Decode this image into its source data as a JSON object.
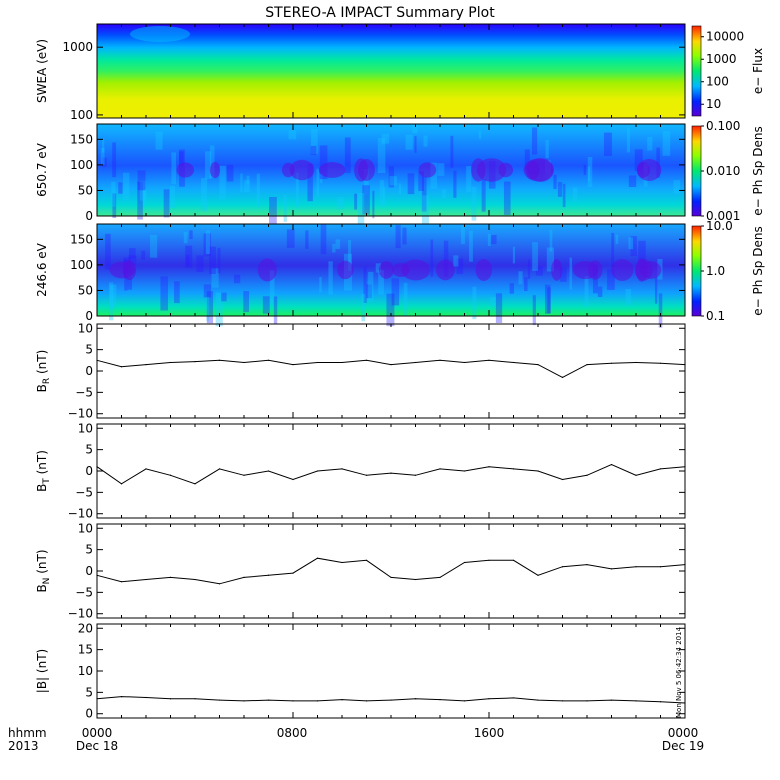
{
  "title": "STEREO-A IMPACT Summary Plot",
  "footer": {
    "left_top": "hhmm",
    "left_bottom": "2013",
    "start_date": "Dec 18",
    "end_date": "Dec 19"
  },
  "x_ticks": [
    "0000",
    "0800",
    "1600",
    "0000"
  ],
  "stamp": "Mon Nov  5 06:42:34 2014",
  "colors": {
    "axis": "#000000",
    "line": "#000000"
  },
  "chart_data": [
    {
      "type": "heatmap",
      "id": "swea",
      "ylabel": "SWEA (eV)",
      "yscale": "log",
      "ylim": [
        90,
        2200
      ],
      "yticks": [
        100,
        1000
      ],
      "ytick_labels": [
        "100",
        "1000"
      ],
      "colorbar": {
        "label": "e− Flux",
        "scale": "log",
        "range": [
          3,
          30000
        ],
        "ticks": [
          10,
          100,
          1000,
          10000
        ],
        "tick_labels": [
          "10",
          "100",
          "1000",
          "10000"
        ]
      }
    },
    {
      "type": "heatmap",
      "id": "pad650",
      "ylabel": "650.7 eV",
      "ylim": [
        0,
        180
      ],
      "yticks": [
        0,
        50,
        100,
        150
      ],
      "ytick_labels": [
        "0",
        "50",
        "100",
        "150"
      ],
      "colorbar": {
        "label": "e− Ph Sp Dens",
        "scale": "log",
        "range": [
          0.001,
          0.1
        ],
        "ticks": [
          0.001,
          0.01,
          0.1
        ],
        "tick_labels": [
          "0.001",
          "0.010",
          "0.100"
        ]
      }
    },
    {
      "type": "heatmap",
      "id": "pad246",
      "ylabel": "246.6 eV",
      "ylim": [
        0,
        180
      ],
      "yticks": [
        0,
        50,
        100,
        150
      ],
      "ytick_labels": [
        "0",
        "50",
        "100",
        "150"
      ],
      "colorbar": {
        "label": "e− Ph Sp Dens",
        "scale": "log",
        "range": [
          0.1,
          10
        ],
        "ticks": [
          0.1,
          1,
          10
        ],
        "tick_labels": [
          "0.1",
          "1.0",
          "10.0"
        ]
      }
    },
    {
      "type": "line",
      "id": "br",
      "ylabel_main": "B",
      "ylabel_sub": "R",
      "ylabel_tail": " (nT)",
      "ylim": [
        -11,
        11
      ],
      "yticks": [
        -10,
        -5,
        0,
        5,
        10
      ],
      "ytick_labels": [
        "−10",
        "−5",
        "0",
        "5",
        "10"
      ],
      "x_hours": [
        0,
        1,
        2,
        3,
        4,
        5,
        6,
        7,
        8,
        9,
        10,
        11,
        12,
        13,
        14,
        15,
        16,
        17,
        18,
        19,
        20,
        21,
        22,
        23,
        24
      ],
      "values": [
        2.5,
        1.0,
        1.5,
        2.0,
        2.2,
        2.5,
        2.0,
        2.5,
        1.5,
        2.0,
        2.0,
        2.5,
        1.5,
        2.0,
        2.5,
        2.0,
        2.5,
        2.0,
        1.5,
        -1.5,
        1.5,
        1.8,
        2.0,
        1.8,
        1.5
      ]
    },
    {
      "type": "line",
      "id": "bt",
      "ylabel_main": "B",
      "ylabel_sub": "T",
      "ylabel_tail": " (nT)",
      "ylim": [
        -11,
        11
      ],
      "yticks": [
        -10,
        -5,
        0,
        5,
        10
      ],
      "ytick_labels": [
        "−10",
        "−5",
        "0",
        "5",
        "10"
      ],
      "x_hours": [
        0,
        1,
        2,
        3,
        4,
        5,
        6,
        7,
        8,
        9,
        10,
        11,
        12,
        13,
        14,
        15,
        16,
        17,
        18,
        19,
        20,
        21,
        22,
        23,
        24
      ],
      "values": [
        1.0,
        -3.0,
        0.5,
        -1.0,
        -3.0,
        0.5,
        -1.0,
        0.0,
        -2.0,
        0.0,
        0.5,
        -1.0,
        -0.5,
        -1.0,
        0.5,
        0.0,
        1.0,
        0.5,
        0.0,
        -2.0,
        -1.0,
        1.5,
        -1.0,
        0.5,
        1.0
      ]
    },
    {
      "type": "line",
      "id": "bn",
      "ylabel_main": "B",
      "ylabel_sub": "N",
      "ylabel_tail": " (nT)",
      "ylim": [
        -11,
        11
      ],
      "yticks": [
        -10,
        -5,
        0,
        5,
        10
      ],
      "ytick_labels": [
        "−10",
        "−5",
        "0",
        "5",
        "10"
      ],
      "x_hours": [
        0,
        1,
        2,
        3,
        4,
        5,
        6,
        7,
        8,
        9,
        10,
        11,
        12,
        13,
        14,
        15,
        16,
        17,
        18,
        19,
        20,
        21,
        22,
        23,
        24
      ],
      "values": [
        -1.0,
        -2.5,
        -2.0,
        -1.5,
        -2.0,
        -3.0,
        -1.5,
        -1.0,
        -0.5,
        3.0,
        2.0,
        2.5,
        -1.5,
        -2.0,
        -1.5,
        2.0,
        2.5,
        2.5,
        -1.0,
        1.0,
        1.5,
        0.5,
        1.0,
        1.0,
        1.5
      ]
    },
    {
      "type": "line",
      "id": "bmag",
      "ylabel_main": "|B| (nT)",
      "ylim": [
        -1,
        21
      ],
      "yticks": [
        0,
        5,
        10,
        15,
        20
      ],
      "ytick_labels": [
        "0",
        "5",
        "10",
        "15",
        "20"
      ],
      "x_hours": [
        0,
        1,
        2,
        3,
        4,
        5,
        6,
        7,
        8,
        9,
        10,
        11,
        12,
        13,
        14,
        15,
        16,
        17,
        18,
        19,
        20,
        21,
        22,
        23,
        24
      ],
      "values": [
        3.5,
        4.0,
        3.8,
        3.5,
        3.5,
        3.2,
        3.0,
        3.2,
        3.0,
        3.0,
        3.3,
        3.0,
        3.2,
        3.5,
        3.3,
        3.0,
        3.5,
        3.7,
        3.2,
        3.0,
        3.0,
        3.2,
        3.0,
        2.8,
        2.5
      ]
    }
  ]
}
